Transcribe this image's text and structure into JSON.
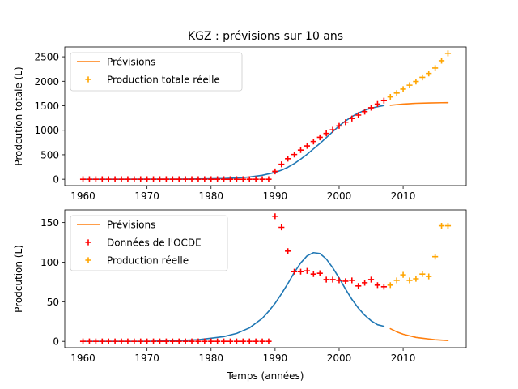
{
  "title": "KGZ : prévisions sur 10 ans",
  "xlabel": "Temps (années)",
  "colors": {
    "fit": "#1f77b4",
    "forecast": "#ff7f0e",
    "oecd": "#ff0000",
    "actual": "#ffa500"
  },
  "chart_data": [
    {
      "type": "line",
      "ylabel": "Prodcution totale (L)",
      "xlim": [
        1957.15,
        2019.85
      ],
      "ylim": [
        -130,
        2700
      ],
      "xticks": [
        1960,
        1970,
        1980,
        1990,
        2000,
        2010
      ],
      "yticks": [
        0,
        500,
        1000,
        1500,
        2000,
        2500
      ],
      "legend": {
        "placement": "top-left",
        "entries": [
          "Prévisions",
          "Production totale réelle"
        ]
      },
      "series": [
        {
          "name": "",
          "style": "line",
          "color": "#1f77b4",
          "x": [
            1960,
            1965,
            1970,
            1975,
            1978,
            1980,
            1982,
            1984,
            1986,
            1988,
            1990,
            1991,
            1992,
            1993,
            1994,
            1995,
            1996,
            1997,
            1998,
            1999,
            2000,
            2001,
            2002,
            2003,
            2004,
            2005,
            2006,
            2007
          ],
          "y": [
            0,
            0,
            1,
            2,
            5,
            9,
            15,
            26,
            45,
            80,
            140,
            185,
            245,
            320,
            410,
            510,
            620,
            730,
            850,
            970,
            1090,
            1190,
            1280,
            1350,
            1410,
            1450,
            1480,
            1505
          ]
        },
        {
          "name": "Prévisions",
          "style": "line",
          "color": "#ff7f0e",
          "x": [
            2008,
            2010,
            2012,
            2014,
            2016,
            2017
          ],
          "y": [
            1510,
            1535,
            1550,
            1557,
            1562,
            1563
          ]
        },
        {
          "name": "",
          "style": "plus",
          "color": "#ff0000",
          "x": [
            1960,
            1961,
            1962,
            1963,
            1964,
            1965,
            1966,
            1967,
            1968,
            1969,
            1970,
            1971,
            1972,
            1973,
            1974,
            1975,
            1976,
            1977,
            1978,
            1979,
            1980,
            1981,
            1982,
            1983,
            1984,
            1985,
            1986,
            1987,
            1988,
            1989,
            1990,
            1991,
            1992,
            1993,
            1994,
            1995,
            1996,
            1997,
            1998,
            1999,
            2000,
            2001,
            2002,
            2003,
            2004,
            2005,
            2006,
            2007
          ],
          "y": [
            0,
            0,
            0,
            0,
            0,
            0,
            0,
            0,
            0,
            0,
            0,
            0,
            0,
            0,
            0,
            0,
            0,
            0,
            0,
            0,
            0,
            0,
            0,
            0,
            0,
            0,
            0,
            0,
            0,
            0,
            160,
            305,
            420,
            505,
            595,
            680,
            770,
            855,
            935,
            1010,
            1090,
            1165,
            1240,
            1310,
            1380,
            1460,
            1535,
            1605
          ]
        },
        {
          "name": "Production totale réelle",
          "style": "plus",
          "color": "#ffa500",
          "x": [
            2008,
            2009,
            2010,
            2011,
            2012,
            2013,
            2014,
            2015,
            2016,
            2017
          ],
          "y": [
            1680,
            1760,
            1840,
            1920,
            1995,
            2080,
            2160,
            2270,
            2420,
            2570
          ]
        }
      ]
    },
    {
      "type": "line",
      "ylabel": "Prodcution (L)",
      "xlim": [
        1957.15,
        2019.85
      ],
      "ylim": [
        -8,
        166
      ],
      "xticks": [
        1960,
        1970,
        1980,
        1990,
        2000,
        2010
      ],
      "yticks": [
        0,
        50,
        100,
        150
      ],
      "legend": {
        "placement": "top-left",
        "entries": [
          "Prévisions",
          "Données de l'OCDE",
          "Production réelle"
        ]
      },
      "series": [
        {
          "name": "",
          "style": "line",
          "color": "#1f77b4",
          "x": [
            1960,
            1965,
            1970,
            1975,
            1978,
            1980,
            1982,
            1984,
            1986,
            1988,
            1989,
            1990,
            1991,
            1992,
            1993,
            1994,
            1995,
            1996,
            1997,
            1998,
            1999,
            2000,
            2001,
            2002,
            2003,
            2004,
            2005,
            2006,
            2007
          ],
          "y": [
            0,
            0,
            0,
            1,
            2,
            4,
            6,
            10,
            17,
            29,
            38,
            48,
            60,
            73,
            87,
            99,
            108,
            112,
            111,
            104,
            93,
            80,
            66,
            53,
            42,
            33,
            26,
            21,
            19
          ]
        },
        {
          "name": "Prévisions",
          "style": "line",
          "color": "#ff7f0e",
          "x": [
            2008,
            2009,
            2010,
            2011,
            2012,
            2013,
            2014,
            2015,
            2016,
            2017
          ],
          "y": [
            16,
            12,
            9,
            7,
            5,
            4,
            3,
            2,
            1.5,
            1
          ]
        },
        {
          "name": "Données de l'OCDE",
          "style": "plus",
          "color": "#ff0000",
          "x": [
            1960,
            1961,
            1962,
            1963,
            1964,
            1965,
            1966,
            1967,
            1968,
            1969,
            1970,
            1971,
            1972,
            1973,
            1974,
            1975,
            1976,
            1977,
            1978,
            1979,
            1980,
            1981,
            1982,
            1983,
            1984,
            1985,
            1986,
            1987,
            1988,
            1989,
            1990,
            1991,
            1992,
            1993,
            1994,
            1995,
            1996,
            1997,
            1998,
            1999,
            2000,
            2001,
            2002,
            2003,
            2004,
            2005,
            2006,
            2007
          ],
          "y": [
            0,
            0,
            0,
            0,
            0,
            0,
            0,
            0,
            0,
            0,
            0,
            0,
            0,
            0,
            0,
            0,
            0,
            0,
            0,
            0,
            0,
            0,
            0,
            0,
            0,
            0,
            0,
            0,
            0,
            0,
            158,
            144,
            114,
            88,
            88,
            89,
            85,
            86,
            78,
            78,
            77,
            76,
            77,
            70,
            74,
            78,
            71,
            69
          ]
        },
        {
          "name": "Production réelle",
          "style": "plus",
          "color": "#ffa500",
          "x": [
            2008,
            2009,
            2010,
            2011,
            2012,
            2013,
            2014,
            2015,
            2016,
            2017
          ],
          "y": [
            71,
            77,
            84,
            77,
            79,
            85,
            82,
            107,
            146,
            146
          ]
        }
      ]
    }
  ]
}
